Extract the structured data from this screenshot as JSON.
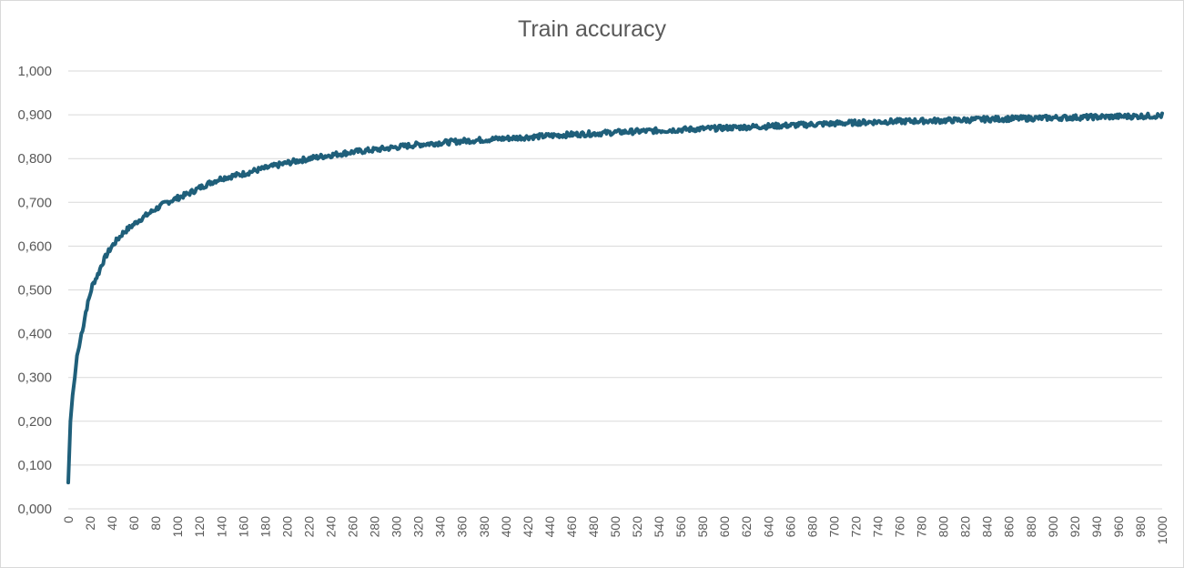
{
  "chart_data": {
    "type": "line",
    "title": "Train accuracy",
    "xlabel": "",
    "ylabel": "",
    "xlim": [
      0,
      1000
    ],
    "ylim": [
      0,
      1
    ],
    "x_ticks": [
      "0",
      "20",
      "40",
      "60",
      "80",
      "100",
      "120",
      "140",
      "160",
      "180",
      "200",
      "220",
      "240",
      "260",
      "280",
      "300",
      "320",
      "340",
      "360",
      "380",
      "400",
      "420",
      "440",
      "460",
      "480",
      "500",
      "520",
      "540",
      "560",
      "580",
      "600",
      "620",
      "640",
      "660",
      "680",
      "700",
      "720",
      "740",
      "760",
      "780",
      "800",
      "820",
      "840",
      "860",
      "880",
      "900",
      "920",
      "940",
      "960",
      "980",
      "1000"
    ],
    "y_ticks": [
      "0,000",
      "0,100",
      "0,200",
      "0,300",
      "0,400",
      "0,500",
      "0,600",
      "0,700",
      "0,800",
      "0,900",
      "1,000"
    ],
    "y_tick_values": [
      0,
      0.1,
      0.2,
      0.3,
      0.4,
      0.5,
      0.6,
      0.7,
      0.8,
      0.9,
      1.0
    ],
    "grid": true,
    "legend": "none",
    "series_color": "#1f5f7a",
    "series": [
      {
        "x": [
          0,
          2,
          4,
          6,
          8,
          10,
          12,
          14,
          16,
          18,
          20,
          22,
          24,
          26,
          28,
          30,
          35,
          40,
          45,
          50,
          55,
          60,
          65,
          70,
          80,
          90,
          100,
          110,
          120,
          130,
          140,
          150,
          160,
          170,
          180,
          190,
          200,
          220,
          240,
          260,
          280,
          300,
          320,
          340,
          360,
          380,
          400,
          420,
          440,
          460,
          480,
          500,
          520,
          540,
          560,
          580,
          600,
          620,
          640,
          660,
          680,
          700,
          720,
          740,
          760,
          780,
          800,
          820,
          840,
          860,
          880,
          900,
          920,
          940,
          960,
          980,
          1000
        ],
        "values": [
          0.06,
          0.2,
          0.26,
          0.3,
          0.35,
          0.37,
          0.4,
          0.42,
          0.45,
          0.47,
          0.49,
          0.51,
          0.52,
          0.53,
          0.54,
          0.555,
          0.58,
          0.6,
          0.615,
          0.63,
          0.64,
          0.65,
          0.66,
          0.668,
          0.685,
          0.7,
          0.71,
          0.72,
          0.733,
          0.745,
          0.755,
          0.76,
          0.765,
          0.772,
          0.778,
          0.784,
          0.79,
          0.8,
          0.808,
          0.815,
          0.82,
          0.826,
          0.832,
          0.836,
          0.84,
          0.843,
          0.846,
          0.849,
          0.852,
          0.855,
          0.857,
          0.86,
          0.862,
          0.864,
          0.866,
          0.868,
          0.87,
          0.872,
          0.874,
          0.876,
          0.878,
          0.88,
          0.882,
          0.884,
          0.885,
          0.886,
          0.887,
          0.888,
          0.89,
          0.891,
          0.892,
          0.893,
          0.894,
          0.895,
          0.896,
          0.897,
          0.898
        ]
      }
    ]
  }
}
